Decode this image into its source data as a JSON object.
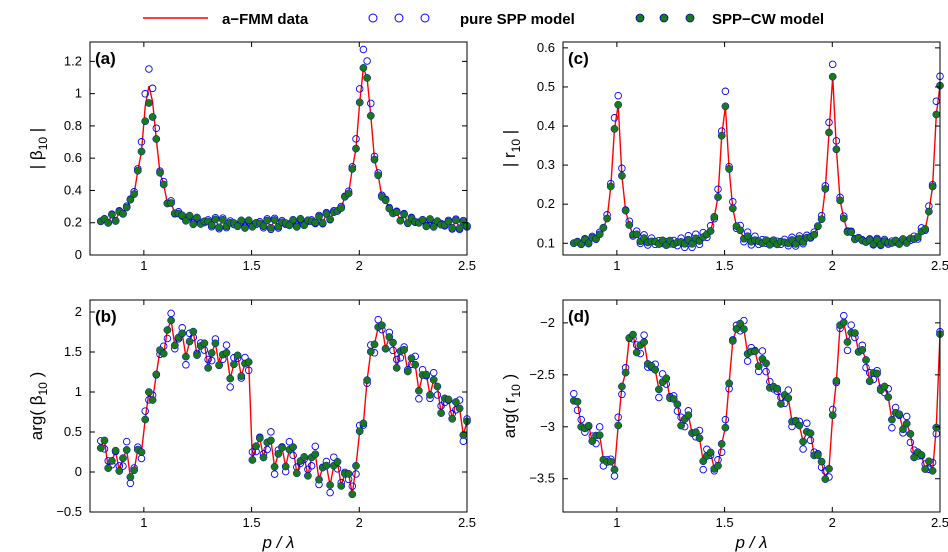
{
  "legend": {
    "entries": [
      {
        "label": "a−FMM data",
        "style": "line",
        "color": "#ff0000"
      },
      {
        "label": "pure SPP model",
        "style": "open-circle",
        "color": "#0000ff"
      },
      {
        "label": "SPP−CW model",
        "style": "filled-circle",
        "color": "#1a7a1a",
        "edge": "#0000cc"
      }
    ]
  },
  "colors": {
    "fmm": "#ff0000",
    "spp": "#0000ff",
    "sppcw": "#1a7a1a"
  },
  "chart_data": [
    {
      "type": "line",
      "panel": "(a)",
      "ylabel_parts": [
        "| β",
        "10",
        " |"
      ],
      "xlabel": "",
      "xlim": [
        0.75,
        2.5
      ],
      "ylim": [
        0,
        1.32
      ],
      "xticks": [
        1,
        1.5,
        2,
        2.5
      ],
      "xtick_labels": [
        "1",
        "1.5",
        "2",
        "2.5"
      ],
      "yticks": [
        0,
        0.2,
        0.4,
        0.6,
        0.8,
        1.0,
        1.2
      ],
      "ytick_labels": [
        "0",
        "0.2",
        "0.4",
        "0.6",
        "0.8",
        "1",
        "1.2"
      ],
      "grid": false,
      "series": [],
      "curve": {
        "peaks": [
          {
            "center": 1.025,
            "height": 0.88,
            "width": 0.04
          },
          {
            "center": 2.025,
            "height": 1.0,
            "width": 0.04
          }
        ],
        "base": 0.18,
        "sppcw_dip": {
          "min": 1.005,
          "max": 1.05,
          "factor": 0.9
        },
        "spp_offset": 0.14
      }
    },
    {
      "type": "line",
      "panel": "(b)",
      "ylabel_parts": [
        "arg( β",
        "10",
        " )"
      ],
      "xlabel": "p / λ",
      "xlim": [
        0.75,
        2.5
      ],
      "ylim": [
        -0.5,
        2.15
      ],
      "xticks": [
        1,
        1.5,
        2,
        2.5
      ],
      "xtick_labels": [
        "1",
        "1.5",
        "2",
        "2.5"
      ],
      "yticks": [
        -0.5,
        0,
        0.5,
        1.0,
        1.5,
        2.0
      ],
      "ytick_labels": [
        "−0.5",
        "0",
        "0.5",
        "1",
        "1.5",
        "2"
      ],
      "grid": false,
      "series": [],
      "curve": {
        "segments": [
          {
            "x0": 0.8,
            "x1": 0.96,
            "y0": 0.25,
            "y1": 0.05
          },
          {
            "x0": 0.96,
            "x1": 1.1,
            "y0": 0.05,
            "y1": 1.75
          },
          {
            "x0": 1.1,
            "x1": 1.495,
            "y0": 1.75,
            "y1": 1.25
          },
          {
            "x0": 1.5,
            "x1": 1.98,
            "y0": 0.35,
            "y1": -0.1
          },
          {
            "x0": 1.98,
            "x1": 2.07,
            "y0": -0.1,
            "y1": 1.8
          },
          {
            "x0": 2.07,
            "x1": 2.5,
            "y0": 1.8,
            "y1": 0.6
          }
        ],
        "spike": {
          "at": 1.5,
          "y": 1.62,
          "after": 0.2
        }
      }
    },
    {
      "type": "line",
      "panel": "(c)",
      "ylabel_parts": [
        "| r",
        "10",
        " |"
      ],
      "xlabel": "",
      "xlim": [
        0.75,
        2.5
      ],
      "ylim": [
        0.07,
        0.615
      ],
      "xticks": [
        1,
        1.5,
        2,
        2.5
      ],
      "xtick_labels": [
        "1",
        "1.5",
        "2",
        "2.5"
      ],
      "yticks": [
        0.1,
        0.2,
        0.3,
        0.4,
        0.5,
        0.6
      ],
      "ytick_labels": [
        "0.1",
        "0.2",
        "0.3",
        "0.4",
        "0.5",
        "0.6"
      ],
      "grid": false,
      "series": [],
      "curve": {
        "peaks": [
          {
            "center": 1.0,
            "height": 0.38,
            "width": 0.022
          },
          {
            "center": 1.5,
            "height": 0.37,
            "width": 0.022
          },
          {
            "center": 2.0,
            "height": 0.43,
            "width": 0.022
          },
          {
            "center": 2.495,
            "height": 0.43,
            "width": 0.022
          }
        ],
        "base": 0.095,
        "spp_offset": 0.1
      }
    },
    {
      "type": "line",
      "panel": "(d)",
      "ylabel_parts": [
        "arg( r",
        "10",
        " )"
      ],
      "xlabel": "p / λ",
      "xlim": [
        0.75,
        2.5
      ],
      "ylim": [
        -3.82,
        -1.78
      ],
      "xticks": [
        1,
        1.5,
        2,
        2.5
      ],
      "xtick_labels": [
        "1",
        "1.5",
        "2",
        "2.5"
      ],
      "yticks": [
        -3.5,
        -3.0,
        -2.5,
        -2.0
      ],
      "ytick_labels": [
        "−3.5",
        "−3",
        "−2.5",
        "−2"
      ],
      "grid": false,
      "series": [],
      "curve": {
        "segments": [
          {
            "x0": 0.8,
            "x1": 0.985,
            "y0": -2.8,
            "y1": -3.4
          },
          {
            "x0": 0.985,
            "x1": 1.06,
            "y0": -3.4,
            "y1": -2.08
          },
          {
            "x0": 1.06,
            "x1": 1.475,
            "y0": -2.08,
            "y1": -3.45
          },
          {
            "x0": 1.475,
            "x1": 1.55,
            "y0": -3.45,
            "y1": -2.0
          },
          {
            "x0": 1.55,
            "x1": 1.985,
            "y0": -2.0,
            "y1": -3.45
          },
          {
            "x0": 1.985,
            "x1": 2.04,
            "y0": -3.45,
            "y1": -1.95
          },
          {
            "x0": 2.04,
            "x1": 2.47,
            "y0": -1.95,
            "y1": -3.5
          },
          {
            "x0": 2.47,
            "x1": 2.5,
            "y0": -3.5,
            "y1": -2.1
          }
        ]
      }
    }
  ]
}
